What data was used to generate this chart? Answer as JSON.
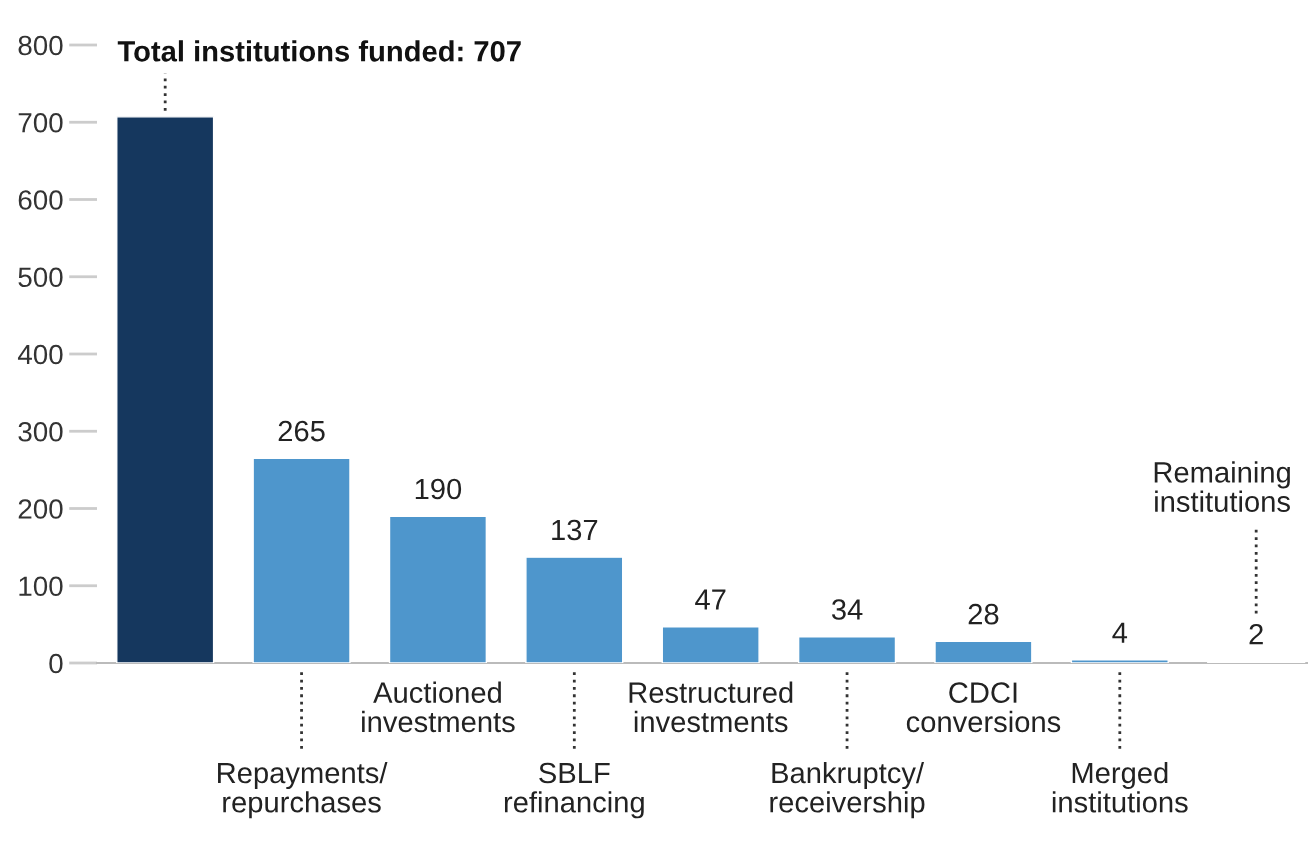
{
  "chart_data": {
    "type": "bar",
    "categories": [
      null,
      "Repayments/\nrepurchases",
      "Auctioned\ninvestments",
      "SBLF\nrefinancing",
      "Restructured\ninvestments",
      "Bankruptcy/\nreceivership",
      "CDCI\nconversions",
      "Merged\ninstitutions",
      null
    ],
    "annotations": [
      "Total institutions funded: 707",
      "Remaining\ninstitutions"
    ],
    "values": [
      707,
      265,
      190,
      137,
      47,
      34,
      28,
      4,
      2
    ],
    "value_labels": [
      null,
      "265",
      "190",
      "137",
      "47",
      "34",
      "28",
      "4",
      "2"
    ],
    "colors": [
      "#15375e",
      "#4e96cc",
      "#4e96cc",
      "#4e96cc",
      "#4e96cc",
      "#4e96cc",
      "#4e96cc",
      "#4e96cc",
      "#4e96cc"
    ],
    "ylim": [
      0,
      800
    ],
    "yticks": [
      0,
      100,
      200,
      300,
      400,
      500,
      600,
      700,
      800
    ],
    "grid": false,
    "legend": false
  }
}
